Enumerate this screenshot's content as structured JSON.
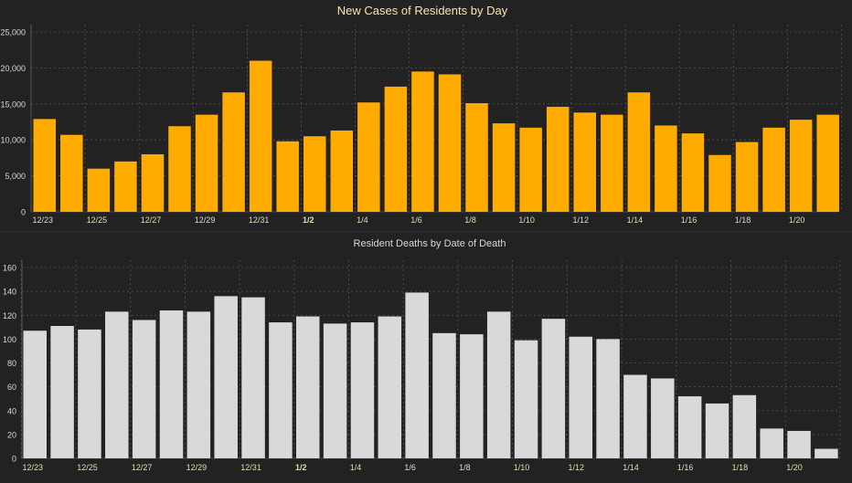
{
  "colors": {
    "background": "#222222",
    "grid": "#555555",
    "axis_text": "#d8d8d8",
    "date_text": "#e8dcb0",
    "title_top": "#f6e6ae",
    "title_bottom": "#d8d8d8",
    "cases_bar": "#ffab00",
    "deaths_bar": "#d9d9d9"
  },
  "chart_data": [
    {
      "type": "bar",
      "title": "New Cases of Residents by Day",
      "categories": [
        "12/23",
        "12/24",
        "12/25",
        "12/26",
        "12/27",
        "12/28",
        "12/29",
        "12/30",
        "12/31",
        "1/1",
        "1/2",
        "1/3",
        "1/4",
        "1/5",
        "1/6",
        "1/7",
        "1/8",
        "1/9",
        "1/10",
        "1/11",
        "1/12",
        "1/13",
        "1/14",
        "1/15",
        "1/16",
        "1/17",
        "1/18",
        "1/19",
        "1/20",
        "1/21"
      ],
      "tick_labels": [
        "12/23",
        "12/25",
        "12/27",
        "12/29",
        "12/31",
        "1/2",
        "1/4",
        "1/6",
        "1/8",
        "1/10",
        "1/12",
        "1/14",
        "1/16",
        "1/18",
        "1/20"
      ],
      "values": [
        12900,
        10700,
        6000,
        7000,
        8000,
        11900,
        13500,
        16600,
        21000,
        9800,
        10500,
        11300,
        15200,
        17400,
        19500,
        19100,
        15100,
        12300,
        11700,
        14600,
        13800,
        13500,
        16600,
        12000,
        10900,
        7900,
        9700,
        11700,
        12800,
        13500
      ],
      "ylim": [
        0,
        25000
      ],
      "yticks": [
        "0",
        "5,000",
        "10,000",
        "15,000",
        "20,000",
        "25,000"
      ],
      "ytick_values": [
        0,
        5000,
        10000,
        15000,
        20000,
        25000
      ],
      "grid": true
    },
    {
      "type": "bar",
      "title": "Resident Deaths by Date of Death",
      "categories": [
        "12/23",
        "12/24",
        "12/25",
        "12/26",
        "12/27",
        "12/28",
        "12/29",
        "12/30",
        "12/31",
        "1/1",
        "1/2",
        "1/3",
        "1/4",
        "1/5",
        "1/6",
        "1/7",
        "1/8",
        "1/9",
        "1/10",
        "1/11",
        "1/12",
        "1/13",
        "1/14",
        "1/15",
        "1/16",
        "1/17",
        "1/18",
        "1/19",
        "1/20",
        "1/21"
      ],
      "tick_labels": [
        "12/23",
        "12/25",
        "12/27",
        "12/29",
        "12/31",
        "1/2",
        "1/4",
        "1/6",
        "1/8",
        "1/10",
        "1/12",
        "1/14",
        "1/16",
        "1/18",
        "1/20"
      ],
      "values": [
        107,
        111,
        108,
        123,
        116,
        124,
        123,
        136,
        135,
        114,
        119,
        113,
        114,
        119,
        139,
        105,
        104,
        123,
        99,
        117,
        102,
        100,
        70,
        67,
        52,
        46,
        53,
        25,
        23,
        8
      ],
      "ylim": [
        0,
        160
      ],
      "yticks": [
        "0",
        "20",
        "40",
        "60",
        "80",
        "100",
        "120",
        "140",
        "160"
      ],
      "ytick_values": [
        0,
        20,
        40,
        60,
        80,
        100,
        120,
        140,
        160
      ],
      "grid": true
    }
  ]
}
